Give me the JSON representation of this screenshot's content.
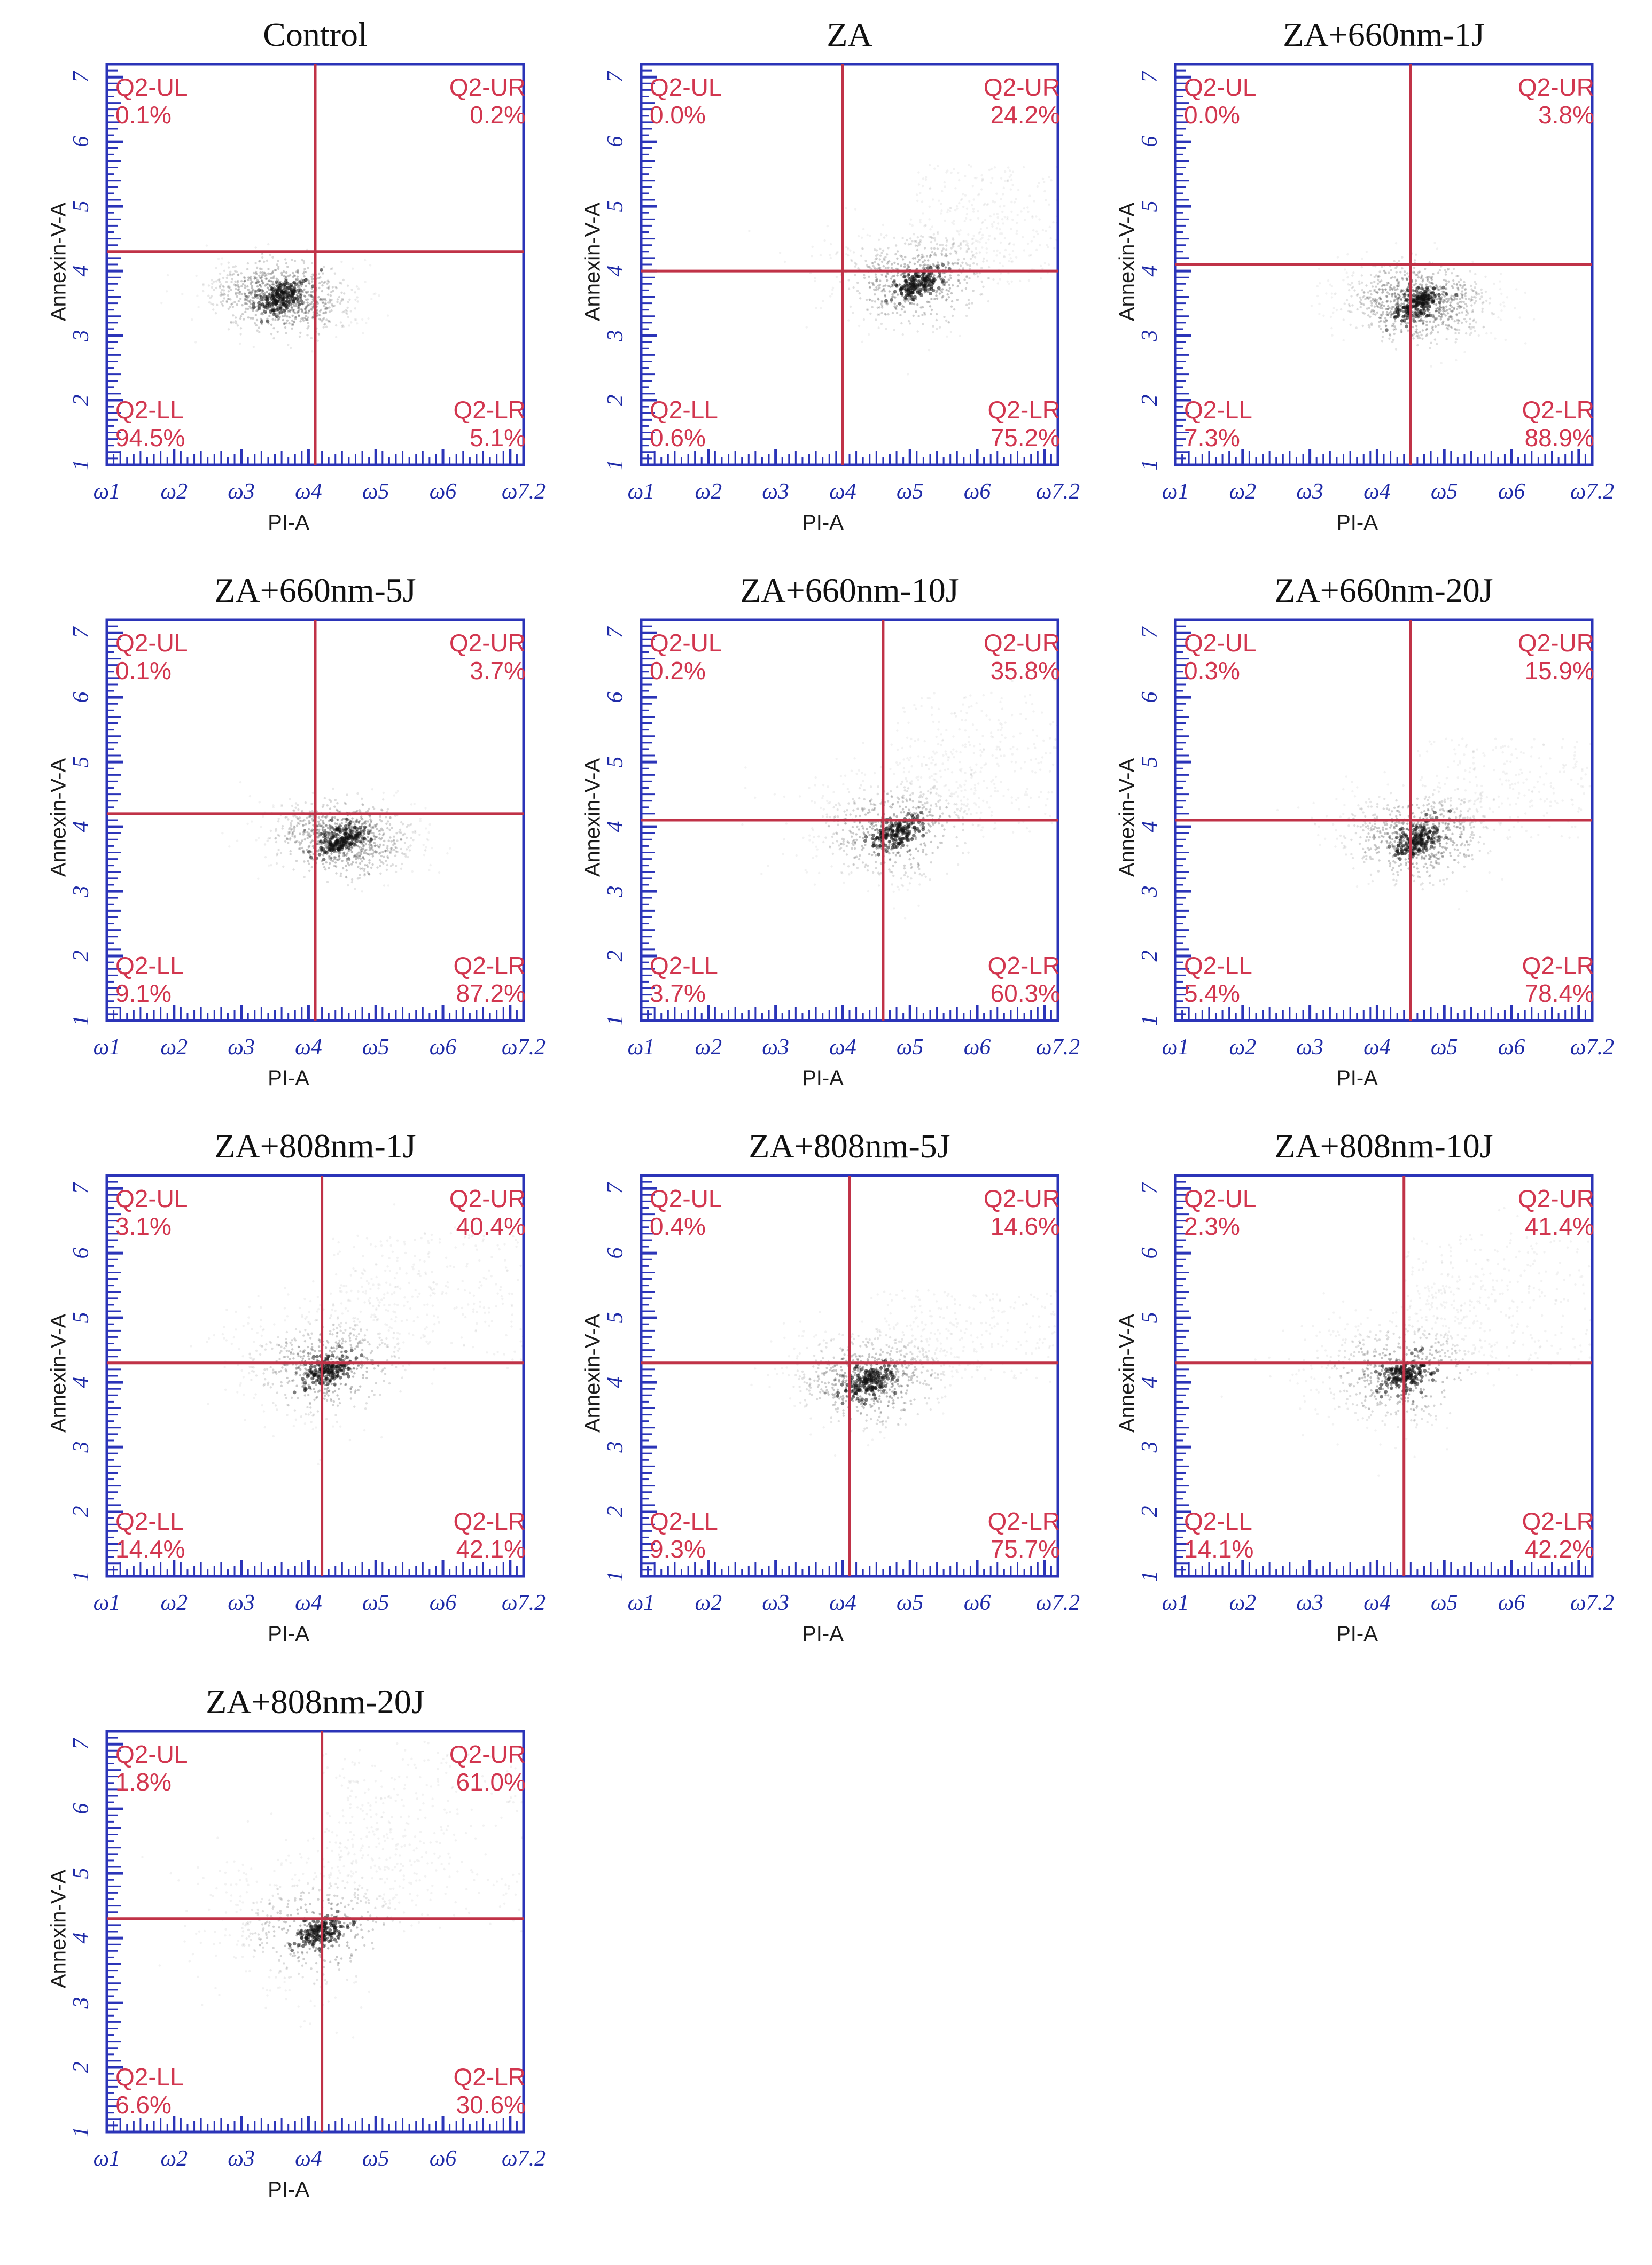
{
  "chart_data": [
    {
      "type": "scatter",
      "title": "Control",
      "xlabel": "PI-A",
      "ylabel": "Annexin-V-A",
      "quadrants": {
        "UL": {
          "label": "Q2-UL",
          "value": "0.1%"
        },
        "UR": {
          "label": "Q2-UR",
          "value": "0.2%"
        },
        "LL": {
          "label": "Q2-LL",
          "value": "94.5%"
        },
        "LR": {
          "label": "Q2-LR",
          "value": "5.1%"
        }
      },
      "gate": {
        "x": 4.1,
        "y": 4.3
      },
      "population_center": {
        "x": 3.6,
        "y": 3.6
      }
    },
    {
      "type": "scatter",
      "title": "ZA",
      "xlabel": "PI-A",
      "ylabel": "Annexin-V-A",
      "quadrants": {
        "UL": {
          "label": "Q2-UL",
          "value": "0.0%"
        },
        "UR": {
          "label": "Q2-UR",
          "value": "24.2%"
        },
        "LL": {
          "label": "Q2-LL",
          "value": "0.6%"
        },
        "LR": {
          "label": "Q2-LR",
          "value": "75.2%"
        }
      },
      "gate": {
        "x": 4.0,
        "y": 4.0
      },
      "population_center": {
        "x": 5.1,
        "y": 3.8
      }
    },
    {
      "type": "scatter",
      "title": "ZA+660nm-1J",
      "xlabel": "PI-A",
      "ylabel": "Annexin-V-A",
      "quadrants": {
        "UL": {
          "label": "Q2-UL",
          "value": "0.0%"
        },
        "UR": {
          "label": "Q2-UR",
          "value": "3.8%"
        },
        "LL": {
          "label": "Q2-LL",
          "value": "7.3%"
        },
        "LR": {
          "label": "Q2-LR",
          "value": "88.9%"
        }
      },
      "gate": {
        "x": 4.5,
        "y": 4.1
      },
      "population_center": {
        "x": 4.6,
        "y": 3.5
      }
    },
    {
      "type": "scatter",
      "title": "ZA+660nm-5J",
      "xlabel": "PI-A",
      "ylabel": "Annexin-V-A",
      "quadrants": {
        "UL": {
          "label": "Q2-UL",
          "value": "0.1%"
        },
        "UR": {
          "label": "Q2-UR",
          "value": "3.7%"
        },
        "LL": {
          "label": "Q2-LL",
          "value": "9.1%"
        },
        "LR": {
          "label": "Q2-LR",
          "value": "87.2%"
        }
      },
      "gate": {
        "x": 4.1,
        "y": 4.2
      },
      "population_center": {
        "x": 4.5,
        "y": 3.8
      }
    },
    {
      "type": "scatter",
      "title": "ZA+660nm-10J",
      "xlabel": "PI-A",
      "ylabel": "Annexin-V-A",
      "quadrants": {
        "UL": {
          "label": "Q2-UL",
          "value": "0.2%"
        },
        "UR": {
          "label": "Q2-UR",
          "value": "35.8%"
        },
        "LL": {
          "label": "Q2-LL",
          "value": "3.7%"
        },
        "LR": {
          "label": "Q2-LR",
          "value": "60.3%"
        }
      },
      "gate": {
        "x": 4.6,
        "y": 4.1
      },
      "population_center": {
        "x": 4.8,
        "y": 3.9
      }
    },
    {
      "type": "scatter",
      "title": "ZA+660nm-20J",
      "xlabel": "PI-A",
      "ylabel": "Annexin-V-A",
      "quadrants": {
        "UL": {
          "label": "Q2-UL",
          "value": "0.3%"
        },
        "UR": {
          "label": "Q2-UR",
          "value": "15.9%"
        },
        "LL": {
          "label": "Q2-LL",
          "value": "5.4%"
        },
        "LR": {
          "label": "Q2-LR",
          "value": "78.4%"
        }
      },
      "gate": {
        "x": 4.5,
        "y": 4.1
      },
      "population_center": {
        "x": 4.6,
        "y": 3.8
      }
    },
    {
      "type": "scatter",
      "title": "ZA+808nm-1J",
      "xlabel": "PI-A",
      "ylabel": "Annexin-V-A",
      "quadrants": {
        "UL": {
          "label": "Q2-UL",
          "value": "3.1%"
        },
        "UR": {
          "label": "Q2-UR",
          "value": "40.4%"
        },
        "LL": {
          "label": "Q2-LL",
          "value": "14.4%"
        },
        "LR": {
          "label": "Q2-LR",
          "value": "42.1%"
        }
      },
      "gate": {
        "x": 4.2,
        "y": 4.3
      },
      "population_center": {
        "x": 4.3,
        "y": 4.2
      }
    },
    {
      "type": "scatter",
      "title": "ZA+808nm-5J",
      "xlabel": "PI-A",
      "ylabel": "Annexin-V-A",
      "quadrants": {
        "UL": {
          "label": "Q2-UL",
          "value": "0.4%"
        },
        "UR": {
          "label": "Q2-UR",
          "value": "14.6%"
        },
        "LL": {
          "label": "Q2-LL",
          "value": "9.3%"
        },
        "LR": {
          "label": "Q2-LR",
          "value": "75.7%"
        }
      },
      "gate": {
        "x": 4.1,
        "y": 4.3
      },
      "population_center": {
        "x": 4.4,
        "y": 4.0
      }
    },
    {
      "type": "scatter",
      "title": "ZA+808nm-10J",
      "xlabel": "PI-A",
      "ylabel": "Annexin-V-A",
      "quadrants": {
        "UL": {
          "label": "Q2-UL",
          "value": "2.3%"
        },
        "UR": {
          "label": "Q2-UR",
          "value": "41.4%"
        },
        "LL": {
          "label": "Q2-LL",
          "value": "14.1%"
        },
        "LR": {
          "label": "Q2-LR",
          "value": "42.2%"
        }
      },
      "gate": {
        "x": 4.4,
        "y": 4.3
      },
      "population_center": {
        "x": 4.4,
        "y": 4.1
      }
    },
    {
      "type": "scatter",
      "title": "ZA+808nm-20J",
      "xlabel": "PI-A",
      "ylabel": "Annexin-V-A",
      "quadrants": {
        "UL": {
          "label": "Q2-UL",
          "value": "1.8%"
        },
        "UR": {
          "label": "Q2-UR",
          "value": "61.0%"
        },
        "LL": {
          "label": "Q2-LL",
          "value": "6.6%"
        },
        "LR": {
          "label": "Q2-LR",
          "value": "30.6%"
        }
      },
      "gate": {
        "x": 4.2,
        "y": 4.3
      },
      "population_center": {
        "x": 4.2,
        "y": 4.1
      }
    }
  ],
  "axes": {
    "x_ticks": [
      "ω1",
      "ω2",
      "ω3",
      "ω4",
      "ω5",
      "ω6",
      "ω7.2"
    ],
    "y_ticks": [
      "1",
      "2",
      "3",
      "4",
      "5",
      "6",
      "7"
    ],
    "x_range": [
      1,
      7.2
    ],
    "y_range": [
      1,
      7.2
    ]
  },
  "colors": {
    "frame": "#2b34b8",
    "gate": "#c03247",
    "quadrant_text": "#d2364f",
    "events": "#555555"
  }
}
